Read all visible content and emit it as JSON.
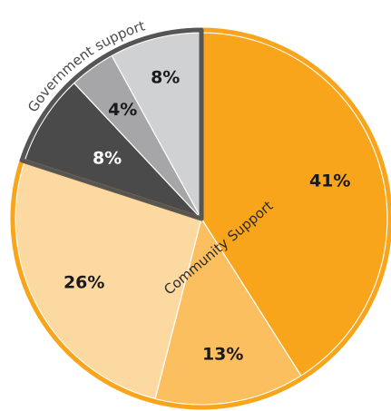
{
  "chart_data": {
    "type": "pie",
    "start_angle_deg": 0,
    "direction": "clockwise",
    "slices": [
      {
        "value": 41,
        "label": "41%",
        "color": "#F8A51B",
        "group": "community"
      },
      {
        "value": 13,
        "label": "13%",
        "color": "#FBBF5F",
        "group": "community"
      },
      {
        "value": 26,
        "label": "26%",
        "color": "#FDD9A2",
        "group": "community"
      },
      {
        "value": 8,
        "label": "8%",
        "color": "#4A4A4A",
        "group": "government"
      },
      {
        "value": 4,
        "label": "4%",
        "color": "#A6A6A8",
        "group": "government"
      },
      {
        "value": 8,
        "label": "8%",
        "color": "#D0D1D3",
        "group": "government"
      }
    ],
    "groups": [
      {
        "id": "community",
        "label": "Community Support",
        "outline_color": "#F8A51B"
      },
      {
        "id": "government",
        "label": "Government support",
        "outline_color": "#555555"
      }
    ]
  }
}
